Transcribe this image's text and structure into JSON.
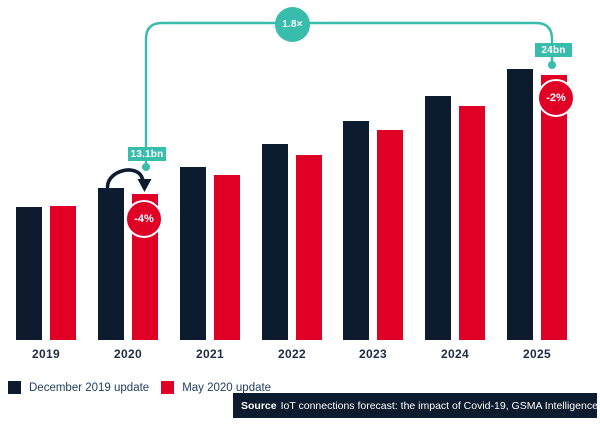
{
  "chart_data": {
    "type": "bar",
    "title": "",
    "xlabel": "",
    "ylabel": "",
    "unit": "billion IoT connections",
    "grid": false,
    "axes_shown": false,
    "ylim": [
      0,
      26
    ],
    "legend_position": "bottom-left",
    "categories": [
      "2019",
      "2020",
      "2021",
      "2022",
      "2023",
      "2024",
      "2025"
    ],
    "series": [
      {
        "name": "December 2019 update",
        "color": "#0d1b2e",
        "values": [
          11.9,
          13.6,
          15.5,
          17.6,
          19.6,
          21.9,
          24.3
        ]
      },
      {
        "name": "May 2020 update",
        "color": "#e00026",
        "values": [
          12.0,
          13.1,
          14.8,
          16.6,
          18.8,
          21.0,
          23.8
        ]
      }
    ],
    "annotations": [
      {
        "text": "13.1bn",
        "target": "May 2020 update @ 2020"
      },
      {
        "text": "24bn",
        "target": "May 2020 update @ 2025"
      },
      {
        "text": "1.8×",
        "target": "growth from 2020 to 2025 (May 2020 update)"
      },
      {
        "text": "-4%",
        "target": "2020 revision vs December 2019 update"
      },
      {
        "text": "-2%",
        "target": "2025 revision vs December 2019 update"
      }
    ]
  },
  "annotations": {
    "ratio_badge": "1.8×",
    "value_2020": "13.1bn",
    "value_2025": "24bn",
    "pct_2020": "-4%",
    "pct_2025": "-2%"
  },
  "legend": {
    "items": [
      {
        "label": "December 2019 update",
        "color": "#0d1b2e"
      },
      {
        "label": "May 2020 update",
        "color": "#e00026"
      }
    ]
  },
  "source": {
    "prefix": "Source",
    "text": "IoT connections forecast: the impact of Covid-19, GSMA Intelligence"
  },
  "colors": {
    "navy": "#0d1b2e",
    "red": "#e00026",
    "teal": "#38bcab",
    "axis_text": "#1d2b45",
    "background": "#ffffff"
  }
}
